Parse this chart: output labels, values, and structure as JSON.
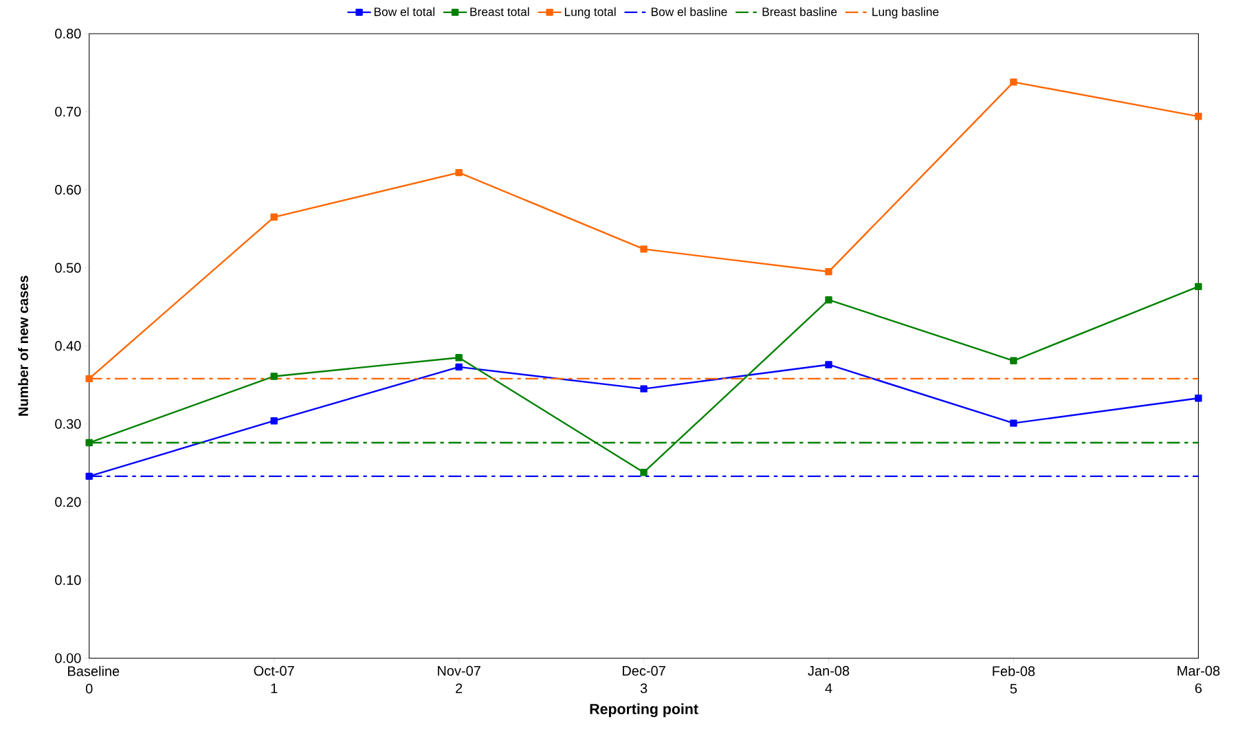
{
  "chart_data": {
    "type": "line",
    "xlabel": "Reporting point",
    "ylabel": "Number of new cases",
    "categories": [
      "Baseline 0",
      "Oct-07 1",
      "Nov-07 2",
      "Dec-07 3",
      "Jan-08 4",
      "Feb-08 5",
      "Mar-08 6"
    ],
    "ylim": [
      0,
      0.8
    ],
    "yticks": [
      {
        "value": 0,
        "label": "0.00"
      },
      {
        "value": 0.1,
        "label": "0.10"
      },
      {
        "value": 0.2,
        "label": "0.20"
      },
      {
        "value": 0.3,
        "label": "0.30"
      },
      {
        "value": 0.4,
        "label": "0.40"
      },
      {
        "value": 0.5,
        "label": "0.50"
      },
      {
        "value": 0.6,
        "label": "0.60"
      },
      {
        "value": 0.7,
        "label": "0.70"
      },
      {
        "value": 0.8,
        "label": "0.80"
      }
    ],
    "legend": "top",
    "marker": "square",
    "line_style": "solid",
    "series": [
      {
        "name": "Bow el total",
        "color": "#0000ff",
        "values": [
          0.233,
          0.304,
          0.373,
          0.345,
          0.376,
          0.301,
          0.333
        ]
      },
      {
        "name": "Breast total",
        "color": "#008000",
        "values": [
          0.276,
          0.361,
          0.385,
          0.238,
          0.459,
          0.381,
          0.476
        ]
      },
      {
        "name": "Lung total",
        "color": "#ff6600",
        "values": [
          0.358,
          0.565,
          0.622,
          0.524,
          0.495,
          0.738,
          0.694
        ]
      },
      {
        "name": "Bow el basline",
        "color": "#0000ff",
        "marker": "none",
        "line_style": "dashdot",
        "values": [
          0.233,
          0.233,
          0.233,
          0.233,
          0.233,
          0.233,
          0.233
        ]
      },
      {
        "name": "Breast basline",
        "color": "#008000",
        "marker": "none",
        "line_style": "dashdot",
        "values": [
          0.276,
          0.276,
          0.276,
          0.276,
          0.276,
          0.276,
          0.276
        ]
      },
      {
        "name": "Lung basline",
        "color": "#ff6600",
        "marker": "none",
        "line_style": "dashdot",
        "values": [
          0.358,
          0.358,
          0.358,
          0.358,
          0.358,
          0.358,
          0.358
        ]
      }
    ]
  }
}
